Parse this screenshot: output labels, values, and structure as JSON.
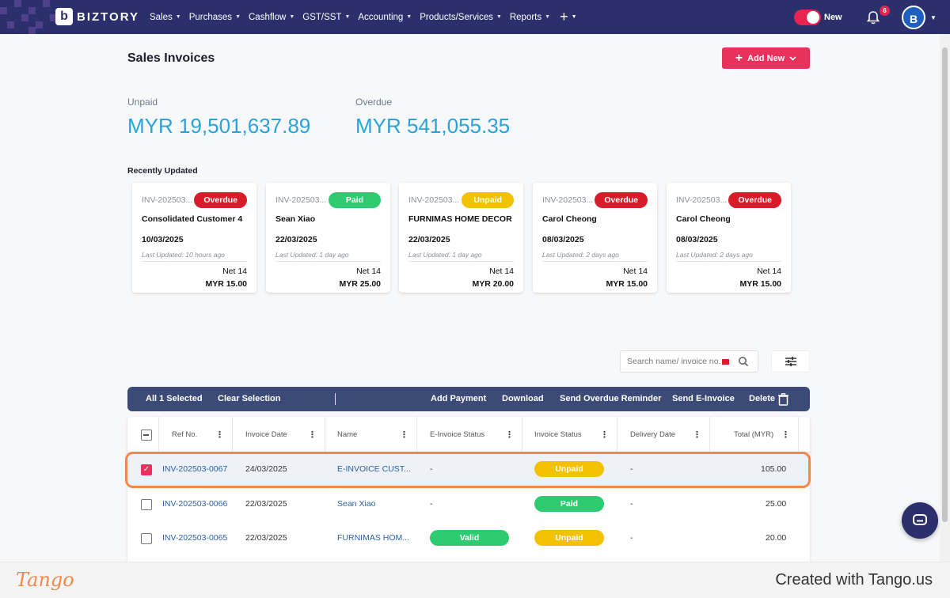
{
  "nav": {
    "brand": "BIZTORY",
    "brand_mark": "b",
    "menu": [
      "Sales",
      "Purchases",
      "Cashflow",
      "GST/SST",
      "Accounting",
      "Products/Services",
      "Reports"
    ],
    "plus": "+",
    "toggle_label": "New",
    "notification_count": "6",
    "avatar": "B"
  },
  "page": {
    "title": "Sales Invoices",
    "add_new": "Add New"
  },
  "summary": {
    "unpaid_label": "Unpaid",
    "unpaid_value": "MYR 19,501,637.89",
    "overdue_label": "Overdue",
    "overdue_value": "MYR 541,055.35"
  },
  "recent": {
    "title": "Recently Updated",
    "cards": [
      {
        "ref": "INV-202503...",
        "status": "Overdue",
        "customer": "Consolidated Customer 4",
        "date": "10/03/2025",
        "updated": "Last Updated: 10 hours ago",
        "terms": "Net 14",
        "amount": "MYR 15.00"
      },
      {
        "ref": "INV-202503...",
        "status": "Paid",
        "customer": "Sean Xiao",
        "date": "22/03/2025",
        "updated": "Last Updated: 1 day ago",
        "terms": "Net 14",
        "amount": "MYR 25.00"
      },
      {
        "ref": "INV-202503...",
        "status": "Unpaid",
        "customer": "FURNIMAS HOME DECOR",
        "date": "22/03/2025",
        "updated": "Last Updated: 1 day ago",
        "terms": "Net 14",
        "amount": "MYR 20.00"
      },
      {
        "ref": "INV-202503...",
        "status": "Overdue",
        "customer": "Carol Cheong",
        "date": "08/03/2025",
        "updated": "Last Updated: 2 days ago",
        "terms": "Net 14",
        "amount": "MYR 15.00"
      },
      {
        "ref": "INV-202503...",
        "status": "Overdue",
        "customer": "Carol Cheong",
        "date": "08/03/2025",
        "updated": "Last Updated: 2 days ago",
        "terms": "Net 14",
        "amount": "MYR 15.00"
      }
    ]
  },
  "search": {
    "placeholder": "Search name/ invoice no."
  },
  "actions": {
    "selected": "All 1 Selected",
    "clear": "Clear Selection",
    "add_payment": "Add Payment",
    "download": "Download",
    "overdue_reminder": "Send Overdue Reminder",
    "e_invoice": "Send E-Invoice",
    "delete": "Delete"
  },
  "table": {
    "headers": [
      "Ref No.",
      "Invoice Date",
      "Name",
      "E-Invoice Status",
      "Invoice Status",
      "Delivery Date",
      "Total (MYR)"
    ],
    "rows": [
      {
        "ref": "INV-202503-0067",
        "date": "24/03/2025",
        "name": "E-INVOICE CUST...",
        "einvoice": "-",
        "status": "Unpaid",
        "delivery": "-",
        "total": "105.00"
      },
      {
        "ref": "INV-202503-0066",
        "date": "22/03/2025",
        "name": "Sean Xiao",
        "einvoice": "-",
        "status": "Paid",
        "delivery": "-",
        "total": "25.00"
      },
      {
        "ref": "INV-202503-0065",
        "date": "22/03/2025",
        "name": "FURNIMAS HOM...",
        "einvoice": "Valid",
        "status": "Unpaid",
        "delivery": "-",
        "total": "20.00"
      }
    ]
  },
  "colors": {
    "navy": "#2b2f6b",
    "accent": "#e8315c",
    "overdue": "#d91c2a",
    "paid": "#2ecc71",
    "unpaid": "#f2c200",
    "highlight": "#f08a4b"
  },
  "footer": {
    "logo": "Tango",
    "credit": "Created with Tango.us"
  }
}
